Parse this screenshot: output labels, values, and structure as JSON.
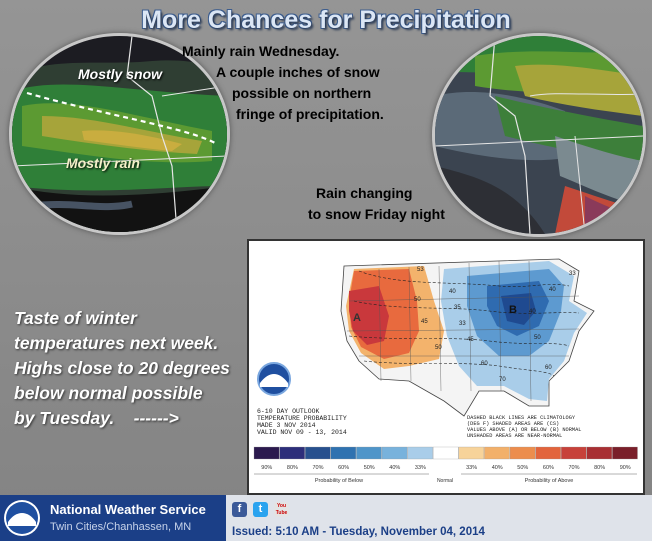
{
  "title": "More Chances for Precipitation",
  "left_circle": {
    "label_snow": "Mostly snow",
    "label_rain": "Mostly rain"
  },
  "note_wednesday": {
    "line1": "Mainly rain Wednesday.",
    "line2": "A couple inches of snow",
    "line3": "possible on northern",
    "line4": "fringe of precipitation."
  },
  "note_friday": {
    "line1": "Rain changing",
    "line2": "to snow Friday night"
  },
  "winter_text": {
    "line1": "Taste of winter",
    "line2": "temperatures next week.",
    "line3": "Highs close to 20 degrees",
    "line4": "below normal possible",
    "line5": "by Tuesday.    ------>"
  },
  "outlook_map": {
    "header1": "6-10 DAY OUTLOOK",
    "header2": "TEMPERATURE PROBABILITY",
    "header3": "MADE  3 NOV 2014",
    "header4": "VALID  NOV 09 - 13, 2014",
    "note1": "DASHED BLACK LINES ARE CLIMATOLOGY",
    "note2": "(DEG F) SHADED AREAS ARE (CS)",
    "note3": "VALUES ABOVE (A) OR BELOW (B) NORMAL",
    "note4": "UNSHADED AREAS ARE NEAR-NORMAL",
    "marker_above": "A",
    "marker_below": "B",
    "contours": [
      "53",
      "50",
      "45",
      "50",
      "40",
      "35",
      "33",
      "45",
      "40",
      "50",
      "60",
      "60",
      "70",
      "40",
      "33"
    ],
    "legend_values": [
      "90%",
      "80%",
      "70%",
      "60%",
      "50%",
      "40%",
      "33%",
      "",
      "33%",
      "40%",
      "50%",
      "60%",
      "70%",
      "80%",
      "90%"
    ],
    "legend_colors": [
      "#2b1a4e",
      "#2d2e7a",
      "#27508e",
      "#2f72b0",
      "#4f95c9",
      "#78b2dc",
      "#a9cde9",
      "#ffffff",
      "#f7d39a",
      "#f2b06a",
      "#ec8d4d",
      "#e2643c",
      "#c7413a",
      "#a82f33",
      "#7a1f2a"
    ],
    "legend_below": "Probability of Below",
    "legend_normal": "Normal",
    "legend_above": "Probability of Above",
    "noaa": "NOAA"
  },
  "footer": {
    "org": "National Weather Service",
    "office": "Twin Cities/Chanhassen, MN",
    "issued": "Issued: 5:10 AM - Tuesday, November 04, 2014",
    "noaa": "NOAA",
    "youtube": "You Tube"
  }
}
